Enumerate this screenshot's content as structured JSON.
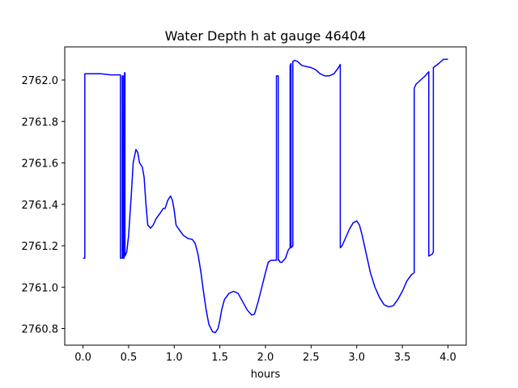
{
  "chart_data": {
    "type": "line",
    "title": "Water Depth h at gauge 46404",
    "xlabel": "hours",
    "ylabel": "",
    "xlim": [
      -0.2,
      4.2
    ],
    "ylim": [
      2760.72,
      2762.16
    ],
    "xticks": [
      0.0,
      0.5,
      1.0,
      1.5,
      2.0,
      2.5,
      3.0,
      3.5,
      4.0
    ],
    "xtick_labels": [
      "0.0",
      "0.5",
      "1.0",
      "1.5",
      "2.0",
      "2.5",
      "3.0",
      "3.5",
      "4.0"
    ],
    "yticks": [
      2760.8,
      2761.0,
      2761.2,
      2761.4,
      2761.6,
      2761.8,
      2762.0
    ],
    "ytick_labels": [
      "2760.8",
      "2761.0",
      "2761.2",
      "2761.4",
      "2761.6",
      "2761.8",
      "2762.0"
    ],
    "grid": false,
    "series": [
      {
        "color": "#0000ff",
        "points": [
          [
            0.0,
            2761.14
          ],
          [
            0.02,
            2761.14
          ],
          [
            0.02,
            2762.03
          ],
          [
            0.05,
            2762.03
          ],
          [
            0.2,
            2762.03
          ],
          [
            0.3,
            2762.025
          ],
          [
            0.41,
            2762.025
          ],
          [
            0.41,
            2761.14
          ],
          [
            0.43,
            2761.14
          ],
          [
            0.43,
            2762.02
          ],
          [
            0.44,
            2762.02
          ],
          [
            0.44,
            2761.14
          ],
          [
            0.45,
            2761.14
          ],
          [
            0.455,
            2762.035
          ],
          [
            0.46,
            2762.035
          ],
          [
            0.46,
            2761.15
          ],
          [
            0.48,
            2761.17
          ],
          [
            0.5,
            2761.25
          ],
          [
            0.53,
            2761.45
          ],
          [
            0.55,
            2761.6
          ],
          [
            0.58,
            2761.665
          ],
          [
            0.6,
            2761.65
          ],
          [
            0.62,
            2761.6
          ],
          [
            0.65,
            2761.58
          ],
          [
            0.67,
            2761.53
          ],
          [
            0.69,
            2761.4
          ],
          [
            0.71,
            2761.3
          ],
          [
            0.74,
            2761.285
          ],
          [
            0.77,
            2761.3
          ],
          [
            0.8,
            2761.33
          ],
          [
            0.85,
            2761.36
          ],
          [
            0.88,
            2761.38
          ],
          [
            0.9,
            2761.38
          ],
          [
            0.93,
            2761.42
          ],
          [
            0.96,
            2761.44
          ],
          [
            0.98,
            2761.42
          ],
          [
            1.0,
            2761.37
          ],
          [
            1.02,
            2761.3
          ],
          [
            1.05,
            2761.28
          ],
          [
            1.1,
            2761.25
          ],
          [
            1.15,
            2761.235
          ],
          [
            1.2,
            2761.23
          ],
          [
            1.23,
            2761.21
          ],
          [
            1.26,
            2761.16
          ],
          [
            1.29,
            2761.08
          ],
          [
            1.32,
            2760.98
          ],
          [
            1.35,
            2760.89
          ],
          [
            1.38,
            2760.82
          ],
          [
            1.42,
            2760.785
          ],
          [
            1.45,
            2760.78
          ],
          [
            1.48,
            2760.8
          ],
          [
            1.5,
            2760.84
          ],
          [
            1.52,
            2760.89
          ],
          [
            1.55,
            2760.94
          ],
          [
            1.6,
            2760.97
          ],
          [
            1.65,
            2760.98
          ],
          [
            1.7,
            2760.97
          ],
          [
            1.75,
            2760.93
          ],
          [
            1.8,
            2760.89
          ],
          [
            1.85,
            2760.865
          ],
          [
            1.88,
            2760.87
          ],
          [
            1.92,
            2760.93
          ],
          [
            1.96,
            2761.0
          ],
          [
            2.0,
            2761.07
          ],
          [
            2.03,
            2761.12
          ],
          [
            2.06,
            2761.13
          ],
          [
            2.12,
            2761.13
          ],
          [
            2.12,
            2762.02
          ],
          [
            2.14,
            2762.02
          ],
          [
            2.14,
            2761.13
          ],
          [
            2.15,
            2761.13
          ],
          [
            2.16,
            2761.12
          ],
          [
            2.18,
            2761.12
          ],
          [
            2.22,
            2761.14
          ],
          [
            2.25,
            2761.18
          ],
          [
            2.27,
            2761.19
          ],
          [
            2.27,
            2762.07
          ],
          [
            2.28,
            2762.08
          ],
          [
            2.28,
            2761.19
          ],
          [
            2.3,
            2761.2
          ],
          [
            2.3,
            2762.09
          ],
          [
            2.32,
            2762.095
          ],
          [
            2.35,
            2762.09
          ],
          [
            2.4,
            2762.07
          ],
          [
            2.5,
            2762.06
          ],
          [
            2.55,
            2762.05
          ],
          [
            2.6,
            2762.03
          ],
          [
            2.65,
            2762.02
          ],
          [
            2.7,
            2762.02
          ],
          [
            2.75,
            2762.03
          ],
          [
            2.8,
            2762.06
          ],
          [
            2.82,
            2762.075
          ],
          [
            2.82,
            2761.19
          ],
          [
            2.84,
            2761.2
          ],
          [
            2.88,
            2761.24
          ],
          [
            2.92,
            2761.28
          ],
          [
            2.96,
            2761.31
          ],
          [
            3.0,
            2761.32
          ],
          [
            3.03,
            2761.3
          ],
          [
            3.06,
            2761.25
          ],
          [
            3.09,
            2761.19
          ],
          [
            3.12,
            2761.13
          ],
          [
            3.15,
            2761.07
          ],
          [
            3.2,
            2761.0
          ],
          [
            3.25,
            2760.95
          ],
          [
            3.3,
            2760.915
          ],
          [
            3.35,
            2760.905
          ],
          [
            3.4,
            2760.91
          ],
          [
            3.45,
            2760.94
          ],
          [
            3.5,
            2760.98
          ],
          [
            3.55,
            2761.03
          ],
          [
            3.6,
            2761.06
          ],
          [
            3.63,
            2761.07
          ],
          [
            3.63,
            2761.96
          ],
          [
            3.65,
            2761.98
          ],
          [
            3.7,
            2762.0
          ],
          [
            3.75,
            2762.02
          ],
          [
            3.79,
            2762.04
          ],
          [
            3.79,
            2761.15
          ],
          [
            3.83,
            2761.16
          ],
          [
            3.84,
            2761.17
          ],
          [
            3.84,
            2762.06
          ],
          [
            3.9,
            2762.08
          ],
          [
            3.95,
            2762.1
          ],
          [
            4.0,
            2762.1
          ]
        ]
      }
    ]
  }
}
